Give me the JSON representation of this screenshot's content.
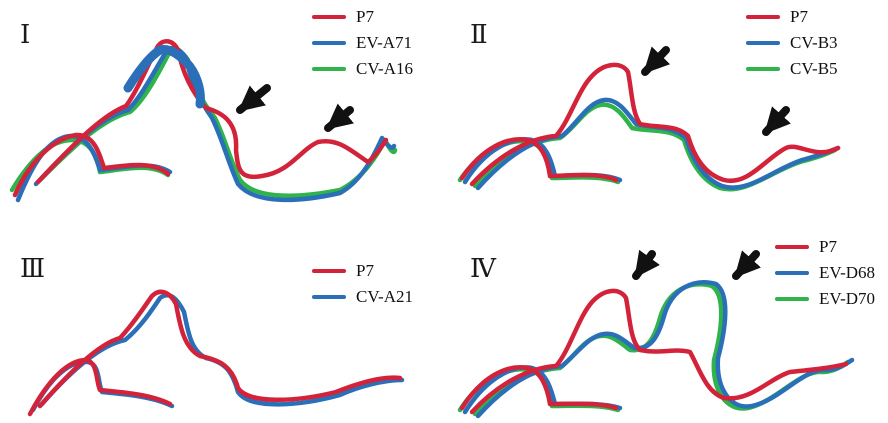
{
  "colors": {
    "red": "#d3233a",
    "blue": "#2a6fb8",
    "green": "#2fb34a",
    "arrow": "#111111"
  },
  "panels": [
    {
      "label": "Ⅰ",
      "legend": [
        "P7",
        "EV-A71",
        "CV-A16"
      ]
    },
    {
      "label": "Ⅱ",
      "legend": [
        "P7",
        "CV-B3",
        "CV-B5"
      ]
    },
    {
      "label": "Ⅲ",
      "legend": [
        "P7",
        "CV-A21"
      ]
    },
    {
      "label": "Ⅳ",
      "legend": [
        "P7",
        "EV-D68",
        "EV-D70"
      ]
    }
  ]
}
